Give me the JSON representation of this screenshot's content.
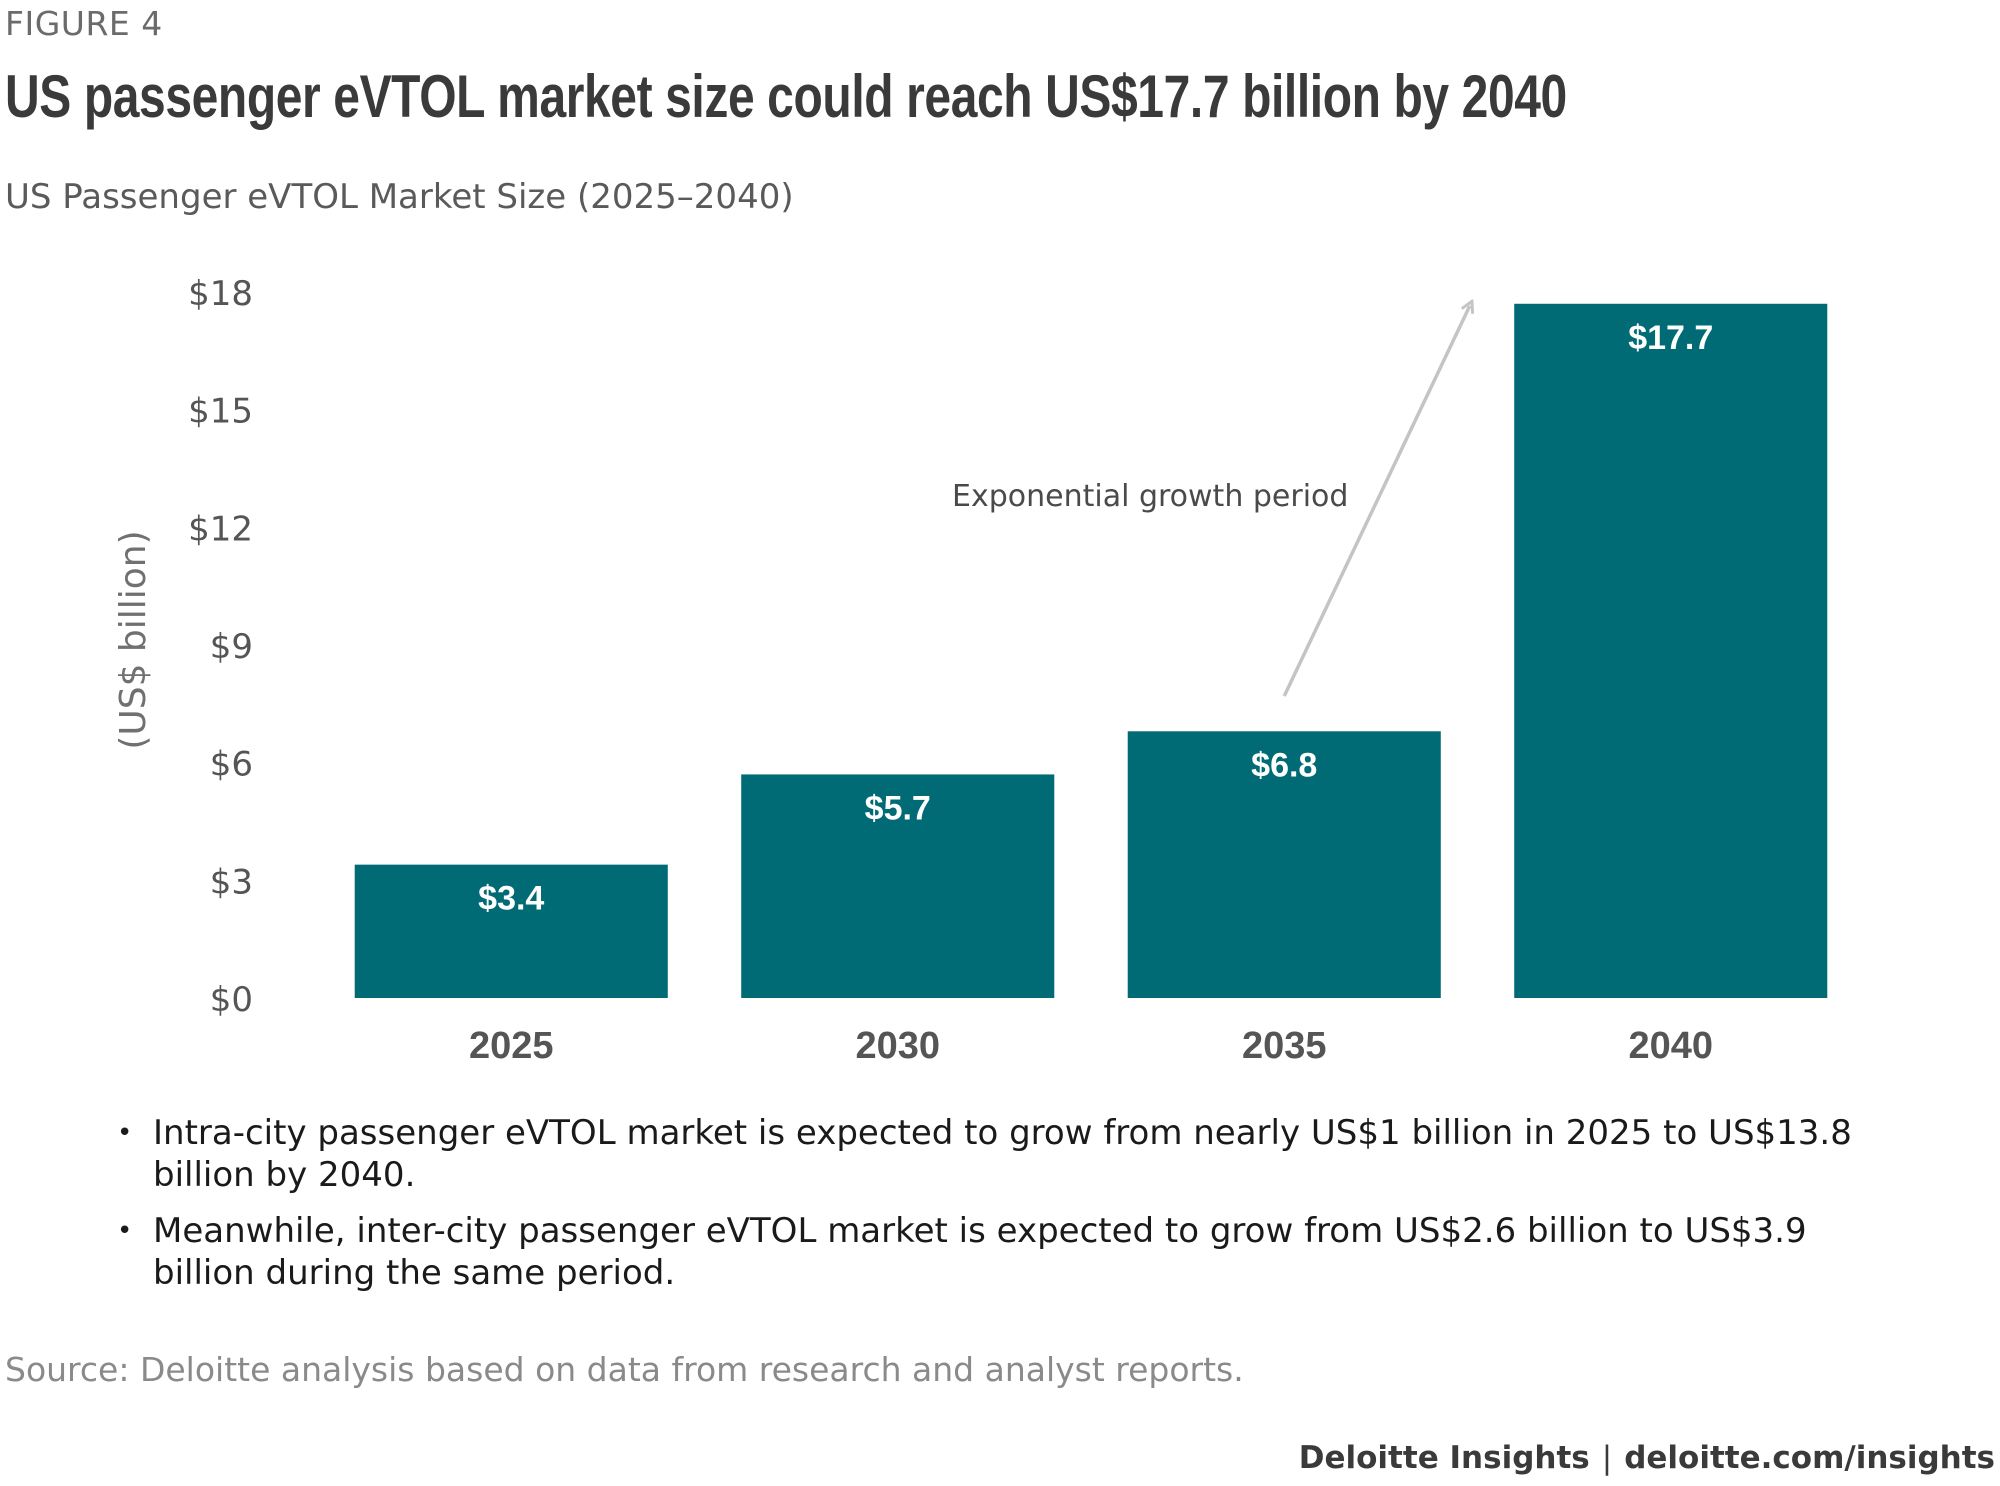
{
  "figure_label": "FIGURE 4",
  "title": "US passenger eVTOL market size could reach US$17.7 billion by 2040",
  "subtitle": "US Passenger eVTOL Market Size (2025–2040)",
  "colors": {
    "bar": "#006b75",
    "bar_label": "#ffffff",
    "arrow": "#c4c4c4",
    "axis_text": "#555555",
    "category_text": "#555555"
  },
  "chart_data": {
    "type": "bar",
    "categories": [
      "2025",
      "2030",
      "2035",
      "2040"
    ],
    "values": [
      3.4,
      5.7,
      6.8,
      17.7
    ],
    "value_labels": [
      "$3.4",
      "$5.7",
      "$6.8",
      "$17.7"
    ],
    "ylabel": "(US$ billion)",
    "ylim": [
      0,
      18
    ],
    "yticks": [
      0,
      3,
      6,
      9,
      12,
      15,
      18
    ],
    "ytick_labels": [
      "$0",
      "$3",
      "$6",
      "$9",
      "$12",
      "$15",
      "$18"
    ],
    "grid": false,
    "annotation": {
      "text": "Exponential growth period",
      "type": "arrow",
      "from": {
        "category": "2035",
        "value": 7.7
      },
      "to": {
        "category": "2040",
        "value": 17.8
      }
    }
  },
  "bullets": [
    "Intra-city passenger eVTOL market is expected to grow from nearly US$1 billion in 2025 to US$13.8 billion by 2040.",
    "Meanwhile, inter-city passenger eVTOL market is expected to grow from US$2.6 billion to US$3.9 billion during the same period."
  ],
  "source": "Source: Deloitte analysis based on data from research and analyst reports.",
  "footer": {
    "brand": "Deloitte Insights",
    "separator": "|",
    "url": "deloitte.com/insights"
  }
}
